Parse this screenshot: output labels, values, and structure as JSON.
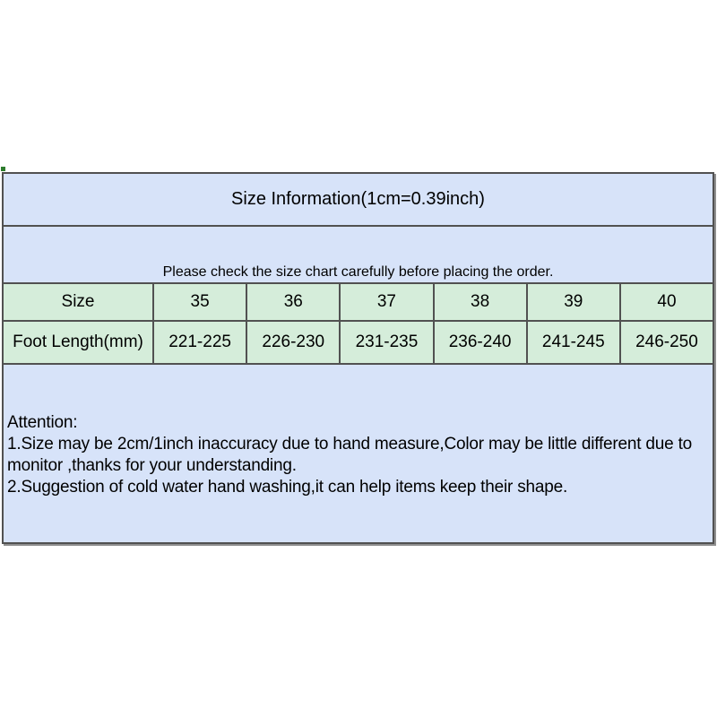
{
  "size_chart": {
    "title": "Size Information(1cm=0.39inch)",
    "note": "Please check the size chart carefully before placing the order.",
    "size_row": {
      "label": "Size",
      "values": [
        "35",
        "36",
        "37",
        "38",
        "39",
        "40"
      ]
    },
    "foot_length_row": {
      "label": "Foot Length(mm)",
      "values": [
        "221-225",
        "226-230",
        "231-235",
        "236-240",
        "241-245",
        "246-250"
      ]
    },
    "attention": {
      "heading": "Attention:",
      "lines": [
        "1.Size may be 2cm/1inch inaccuracy due to hand measure,Color may be little different due to",
        "monitor ,thanks for your understanding.",
        "2.Suggestion of cold water hand washing,it can help items keep their shape."
      ]
    },
    "colors": {
      "header_bg": "#d7e3f9",
      "table_row_bg": "#d5edda",
      "border": "#515151",
      "shadow": "#8f8f8f",
      "text": "#000000"
    }
  }
}
